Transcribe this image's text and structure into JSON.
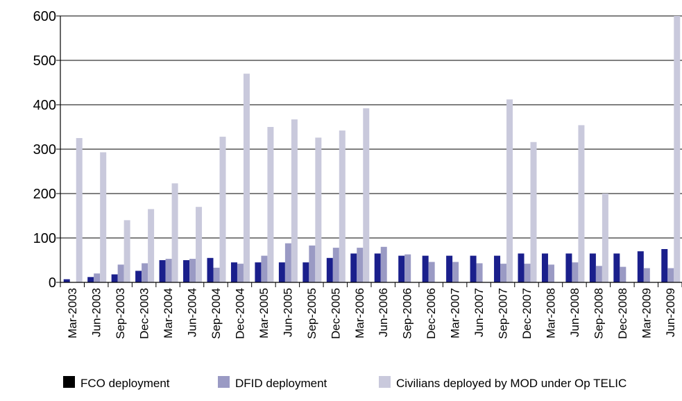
{
  "chart_data": {
    "type": "bar",
    "title": "",
    "xlabel": "",
    "ylabel": "",
    "ylim": [
      0,
      600
    ],
    "yticks": [
      0,
      100,
      200,
      300,
      400,
      500,
      600
    ],
    "grid": "horizontal",
    "legend_position": "bottom",
    "categories": [
      "Mar-2003",
      "Jun-2003",
      "Sep-2003",
      "Dec-2003",
      "Mar-2004",
      "Jun-2004",
      "Sep-2004",
      "Dec-2004",
      "Mar-2005",
      "Jun-2005",
      "Sep-2005",
      "Dec-2005",
      "Mar-2006",
      "Jun-2006",
      "Sep-2006",
      "Dec-2006",
      "Mar-2007",
      "Jun-2007",
      "Sep-2007",
      "Dec-2007",
      "Mar-2008",
      "Jun-2008",
      "Sep-2008",
      "Dec-2008",
      "Mar-2009",
      "Jun-2009"
    ],
    "series": [
      {
        "name": "FCO deployment",
        "color": "#1a1f8c",
        "values": [
          7,
          12,
          18,
          26,
          50,
          50,
          55,
          45,
          45,
          45,
          45,
          55,
          65,
          65,
          60,
          60,
          60,
          60,
          60,
          65,
          65,
          65,
          65,
          65,
          70,
          75
        ]
      },
      {
        "name": "DFID deployment",
        "color": "#9a9ac4",
        "values": [
          0,
          20,
          40,
          43,
          53,
          53,
          33,
          42,
          60,
          88,
          83,
          78,
          78,
          80,
          63,
          46,
          46,
          43,
          42,
          42,
          40,
          45,
          37,
          35,
          32,
          32
        ]
      },
      {
        "name": "Civilians deployed by MOD under Op TELIC",
        "color": "#c9c9dc",
        "values": [
          325,
          293,
          140,
          165,
          223,
          170,
          328,
          470,
          350,
          367,
          326,
          342,
          392,
          0,
          0,
          0,
          0,
          0,
          412,
          316,
          0,
          354,
          200,
          0,
          0,
          600
        ]
      }
    ]
  }
}
